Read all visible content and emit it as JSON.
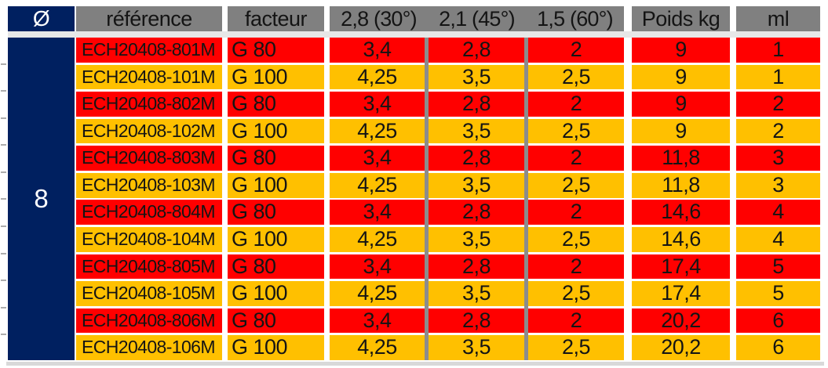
{
  "colors": {
    "red": "#FF0000",
    "orange": "#FFC000",
    "navy": "#002060",
    "header_grey": "#808080",
    "separator_grey": "#8C8C8C",
    "gap_grey": "#E7E7E7",
    "bottom_strip_grey": "#D9D9D9"
  },
  "table": {
    "headers": {
      "diameter": "Ø",
      "reference": "référence",
      "factor": "facteur",
      "angle30": "2,8 (30°)",
      "angle45": "2,1 (45°)",
      "angle60": "1,5 (60°)",
      "weight": "Poids kg",
      "ml": "ml"
    },
    "diameter_value": "8",
    "rows": [
      {
        "reference": "ECH20408-801M",
        "factor": "G 80",
        "v30": "3,4",
        "v45": "2,8",
        "v60": "2",
        "weight_kg": "9",
        "ml": "1",
        "variant": "red"
      },
      {
        "reference": "ECH20408-101M",
        "factor": "G 100",
        "v30": "4,25",
        "v45": "3,5",
        "v60": "2,5",
        "weight_kg": "9",
        "ml": "1",
        "variant": "orange"
      },
      {
        "reference": "ECH20408-802M",
        "factor": "G 80",
        "v30": "3,4",
        "v45": "2,8",
        "v60": "2",
        "weight_kg": "9",
        "ml": "2",
        "variant": "red"
      },
      {
        "reference": "ECH20408-102M",
        "factor": "G 100",
        "v30": "4,25",
        "v45": "3,5",
        "v60": "2,5",
        "weight_kg": "9",
        "ml": "2",
        "variant": "orange"
      },
      {
        "reference": "ECH20408-803M",
        "factor": "G 80",
        "v30": "3,4",
        "v45": "2,8",
        "v60": "2",
        "weight_kg": "11,8",
        "ml": "3",
        "variant": "red"
      },
      {
        "reference": "ECH20408-103M",
        "factor": "G 100",
        "v30": "4,25",
        "v45": "3,5",
        "v60": "2,5",
        "weight_kg": "11,8",
        "ml": "3",
        "variant": "orange"
      },
      {
        "reference": "ECH20408-804M",
        "factor": "G 80",
        "v30": "3,4",
        "v45": "2,8",
        "v60": "2",
        "weight_kg": "14,6",
        "ml": "4",
        "variant": "red"
      },
      {
        "reference": "ECH20408-104M",
        "factor": "G 100",
        "v30": "4,25",
        "v45": "3,5",
        "v60": "2,5",
        "weight_kg": "14,6",
        "ml": "4",
        "variant": "orange"
      },
      {
        "reference": "ECH20408-805M",
        "factor": "G 80",
        "v30": "3,4",
        "v45": "2,8",
        "v60": "2",
        "weight_kg": "17,4",
        "ml": "5",
        "variant": "red"
      },
      {
        "reference": "ECH20408-105M",
        "factor": "G 100",
        "v30": "4,25",
        "v45": "3,5",
        "v60": "2,5",
        "weight_kg": "17,4",
        "ml": "5",
        "variant": "orange"
      },
      {
        "reference": "ECH20408-806M",
        "factor": "G 80",
        "v30": "3,4",
        "v45": "2,8",
        "v60": "2",
        "weight_kg": "20,2",
        "ml": "6",
        "variant": "red"
      },
      {
        "reference": "ECH20408-106M",
        "factor": "G 100",
        "v30": "4,25",
        "v45": "3,5",
        "v60": "2,5",
        "weight_kg": "20,2",
        "ml": "6",
        "variant": "orange"
      }
    ]
  }
}
